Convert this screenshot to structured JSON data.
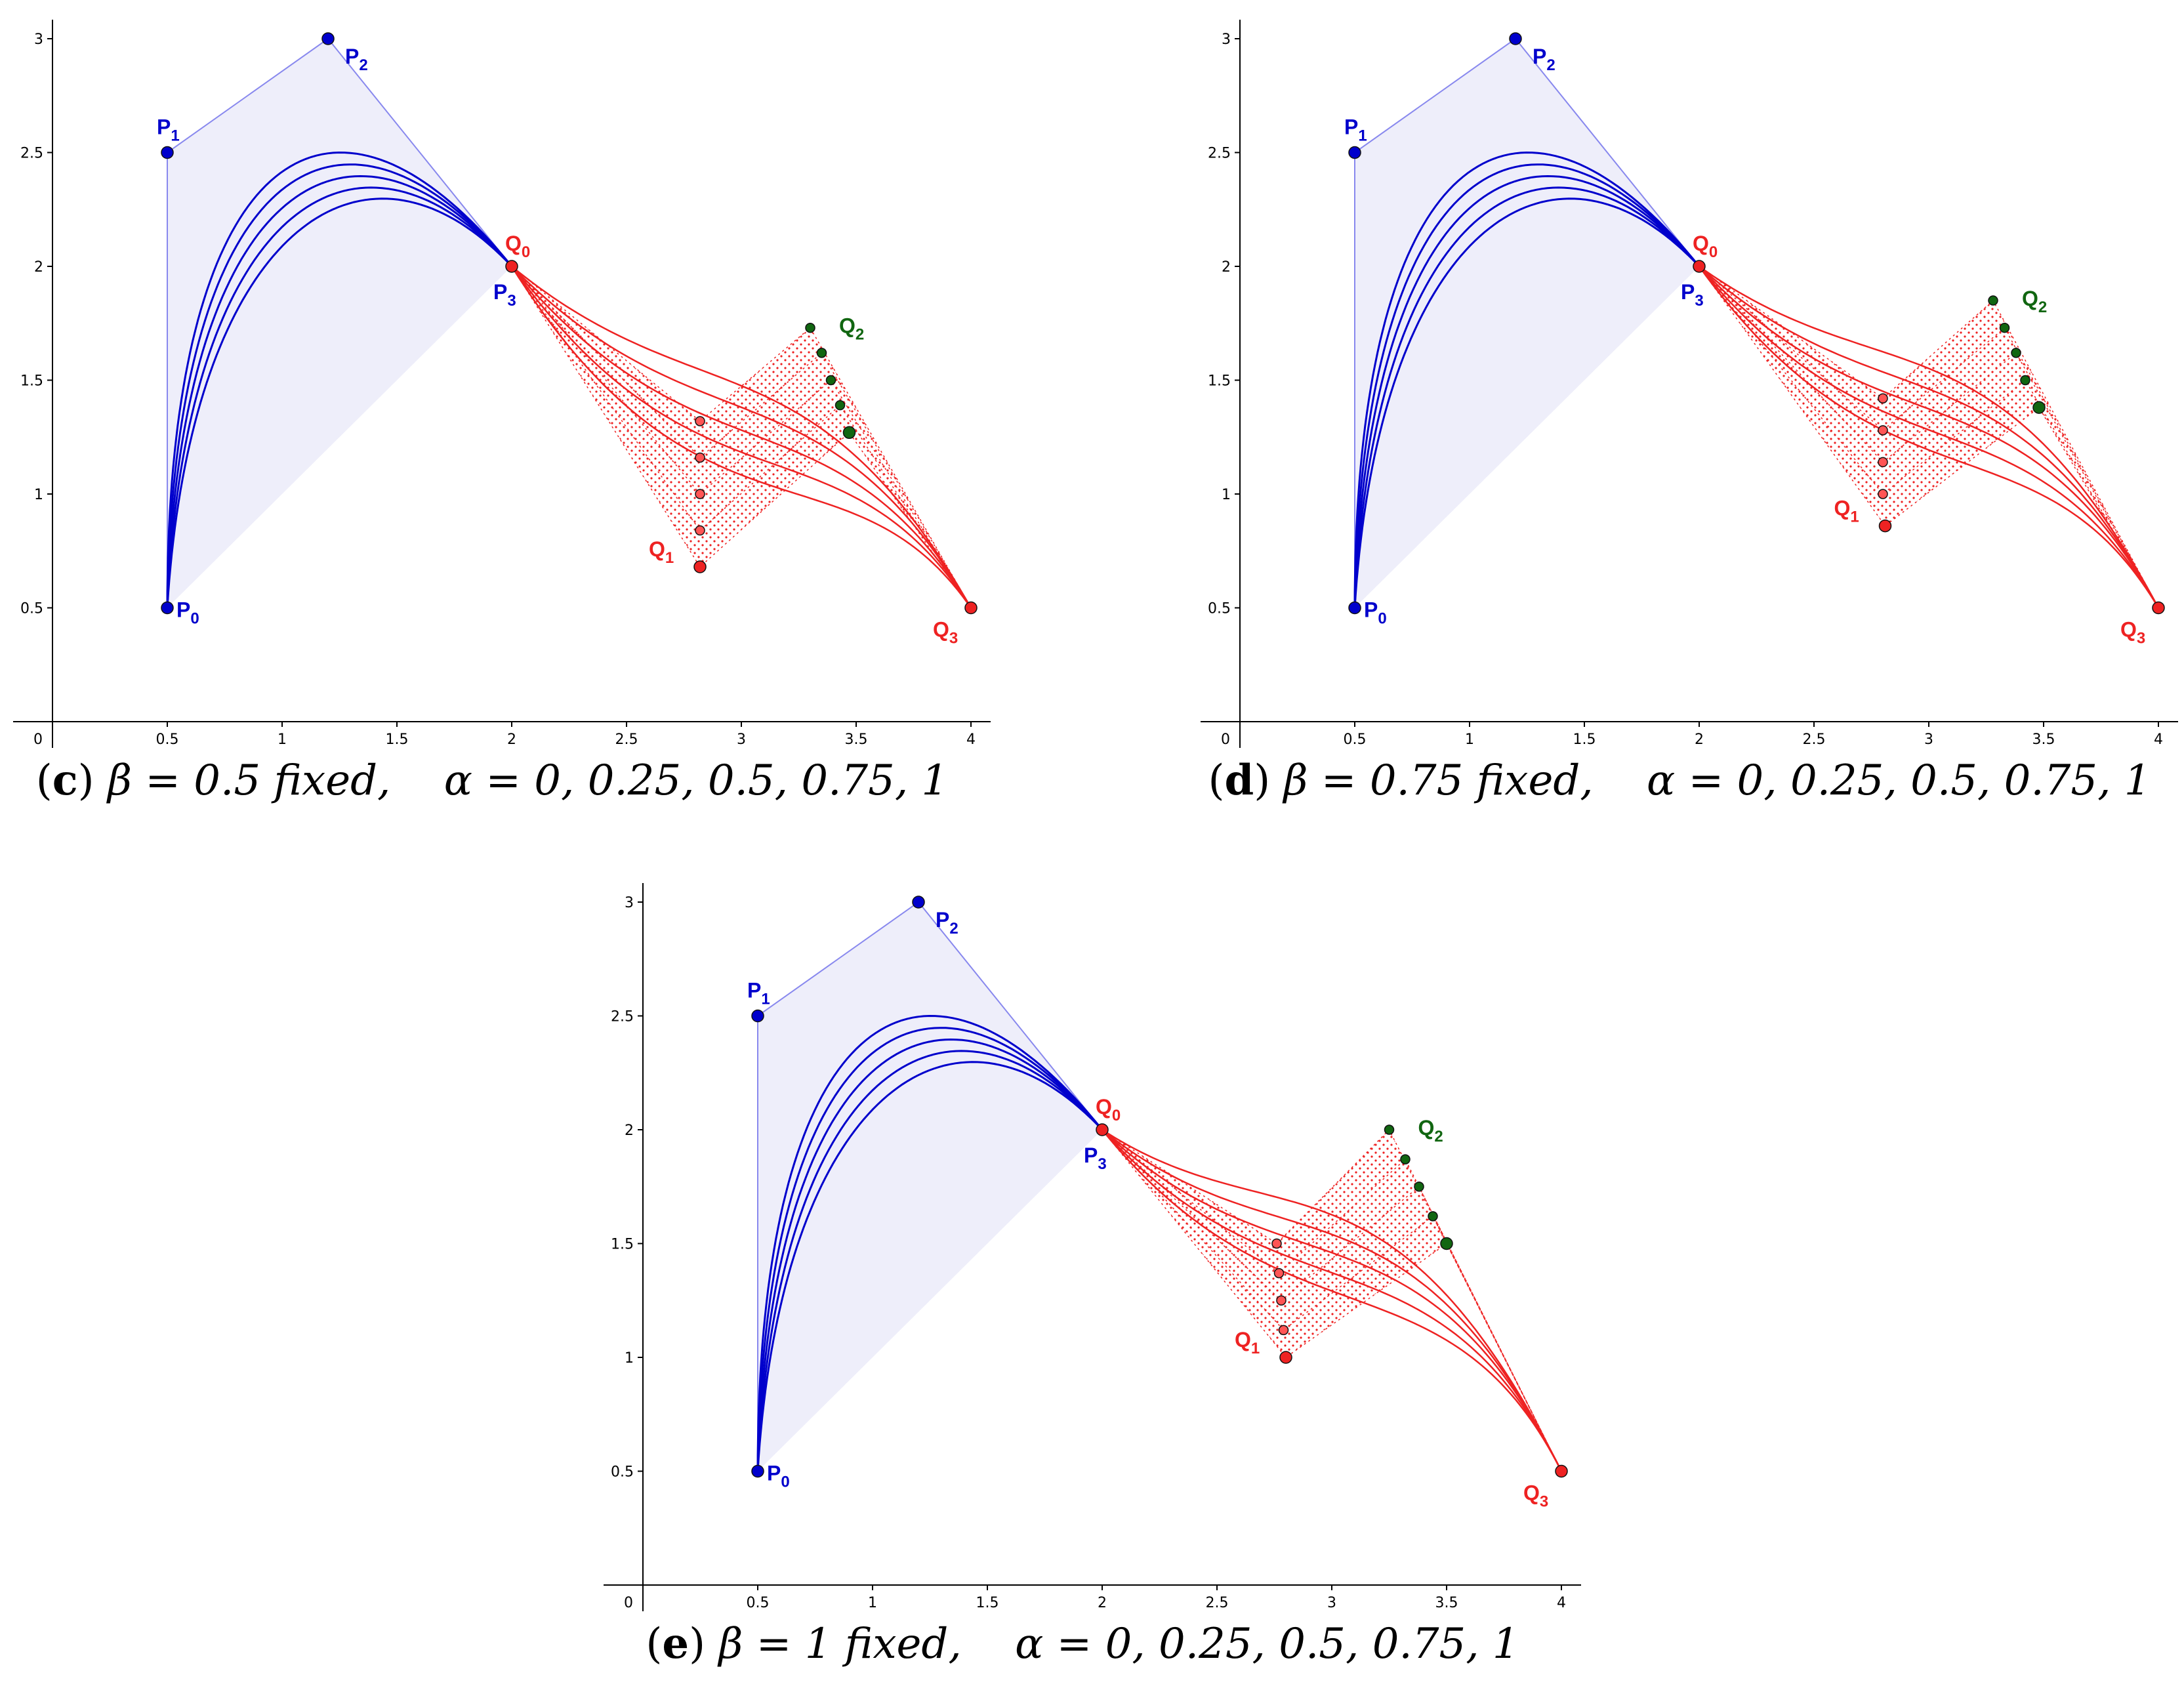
{
  "chart_data": [
    {
      "type": "line",
      "id": "c",
      "caption": {
        "tag": "c",
        "param": "β = 0.5 fixed,",
        "alphas": "α = 0, 0.25, 0.5, 0.75, 1"
      },
      "xlim": [
        0,
        4.1
      ],
      "ylim": [
        0,
        3.05
      ],
      "x_ticks": [
        0,
        0.5,
        1,
        1.5,
        2,
        2.5,
        3,
        3.5,
        4
      ],
      "y_ticks": [
        0.5,
        1,
        1.5,
        2,
        2.5,
        3
      ],
      "x_tick_labels": [
        "0",
        "0.5",
        "1",
        "1.5",
        "2",
        "2.5",
        "3",
        "3.5",
        "4"
      ],
      "y_tick_labels": [
        "0.5",
        "1",
        "1.5",
        "2",
        "2.5",
        "3"
      ],
      "blue_points": [
        [
          0.5,
          0.5
        ],
        [
          0.5,
          2.5
        ],
        [
          1.2,
          3.0
        ],
        [
          2.0,
          2.0
        ]
      ],
      "blue_labels": [
        {
          "main": "P",
          "sub": "0"
        },
        {
          "main": "P",
          "sub": "1"
        },
        {
          "main": "P",
          "sub": "2"
        },
        {
          "main": "P",
          "sub": "3"
        }
      ],
      "blue_curve_offsets": [
        0,
        0.25,
        0.5,
        0.75,
        1
      ],
      "q0": [
        2.0,
        2.0
      ],
      "q3": [
        4.0,
        0.5
      ],
      "q1_points": [
        [
          2.82,
          1.32
        ],
        [
          2.82,
          1.16
        ],
        [
          2.82,
          1.0
        ],
        [
          2.82,
          0.84
        ],
        [
          2.82,
          0.68
        ]
      ],
      "q2_points": [
        [
          3.3,
          1.73
        ],
        [
          3.35,
          1.62
        ],
        [
          3.39,
          1.5
        ],
        [
          3.43,
          1.39
        ],
        [
          3.47,
          1.27
        ]
      ],
      "red_labels": [
        {
          "main": "Q",
          "sub": "0"
        },
        {
          "main": "Q",
          "sub": "1"
        },
        {
          "main": "Q",
          "sub": "2"
        },
        {
          "main": "Q",
          "sub": "3"
        }
      ],
      "colors": {
        "blue": "#0000cc",
        "blue_fill": "#eeeefa",
        "blue_edge": "#8888ee",
        "red": "#ee2222",
        "green": "#116611"
      }
    },
    {
      "type": "line",
      "id": "d",
      "caption": {
        "tag": "d",
        "param": "β = 0.75 fixed,",
        "alphas": "α = 0, 0.25, 0.5, 0.75, 1"
      },
      "xlim": [
        0,
        4.1
      ],
      "ylim": [
        0,
        3.05
      ],
      "x_ticks": [
        0,
        0.5,
        1,
        1.5,
        2,
        2.5,
        3,
        3.5,
        4
      ],
      "y_ticks": [
        0.5,
        1,
        1.5,
        2,
        2.5,
        3
      ],
      "x_tick_labels": [
        "0",
        "0.5",
        "1",
        "1.5",
        "2",
        "2.5",
        "3",
        "3.5",
        "4"
      ],
      "y_tick_labels": [
        "0.5",
        "1",
        "1.5",
        "2",
        "2.5",
        "3"
      ],
      "blue_points": [
        [
          0.5,
          0.5
        ],
        [
          0.5,
          2.5
        ],
        [
          1.2,
          3.0
        ],
        [
          2.0,
          2.0
        ]
      ],
      "blue_labels": [
        {
          "main": "P",
          "sub": "0"
        },
        {
          "main": "P",
          "sub": "1"
        },
        {
          "main": "P",
          "sub": "2"
        },
        {
          "main": "P",
          "sub": "3"
        }
      ],
      "blue_curve_offsets": [
        0,
        0.25,
        0.5,
        0.75,
        1
      ],
      "q0": [
        2.0,
        2.0
      ],
      "q3": [
        4.0,
        0.5
      ],
      "q1_points": [
        [
          2.8,
          1.42
        ],
        [
          2.8,
          1.28
        ],
        [
          2.8,
          1.14
        ],
        [
          2.8,
          1.0
        ],
        [
          2.81,
          0.86
        ]
      ],
      "q2_points": [
        [
          3.28,
          1.85
        ],
        [
          3.33,
          1.73
        ],
        [
          3.38,
          1.62
        ],
        [
          3.42,
          1.5
        ],
        [
          3.48,
          1.38
        ]
      ],
      "red_labels": [
        {
          "main": "Q",
          "sub": "0"
        },
        {
          "main": "Q",
          "sub": "1"
        },
        {
          "main": "Q",
          "sub": "2"
        },
        {
          "main": "Q",
          "sub": "3"
        }
      ],
      "colors": {
        "blue": "#0000cc",
        "blue_fill": "#eeeefa",
        "blue_edge": "#8888ee",
        "red": "#ee2222",
        "green": "#116611"
      }
    },
    {
      "type": "line",
      "id": "e",
      "caption": {
        "tag": "e",
        "param": "β = 1 fixed,",
        "alphas": "α = 0, 0.25, 0.5, 0.75, 1"
      },
      "xlim": [
        0,
        4.1
      ],
      "ylim": [
        0,
        3.05
      ],
      "x_ticks": [
        0,
        0.5,
        1,
        1.5,
        2,
        2.5,
        3,
        3.5,
        4
      ],
      "y_ticks": [
        0.5,
        1,
        1.5,
        2,
        2.5,
        3
      ],
      "x_tick_labels": [
        "0",
        "0.5",
        "1",
        "1.5",
        "2",
        "2.5",
        "3",
        "3.5",
        "4"
      ],
      "y_tick_labels": [
        "0.5",
        "1",
        "1.5",
        "2",
        "2.5",
        "3"
      ],
      "blue_points": [
        [
          0.5,
          0.5
        ],
        [
          0.5,
          2.5
        ],
        [
          1.2,
          3.0
        ],
        [
          2.0,
          2.0
        ]
      ],
      "blue_labels": [
        {
          "main": "P",
          "sub": "0"
        },
        {
          "main": "P",
          "sub": "1"
        },
        {
          "main": "P",
          "sub": "2"
        },
        {
          "main": "P",
          "sub": "3"
        }
      ],
      "blue_curve_offsets": [
        0,
        0.25,
        0.5,
        0.75,
        1
      ],
      "q0": [
        2.0,
        2.0
      ],
      "q3": [
        4.0,
        0.5
      ],
      "q1_points": [
        [
          2.76,
          1.5
        ],
        [
          2.77,
          1.37
        ],
        [
          2.78,
          1.25
        ],
        [
          2.79,
          1.12
        ],
        [
          2.8,
          1.0
        ]
      ],
      "q2_points": [
        [
          3.25,
          2.0
        ],
        [
          3.32,
          1.87
        ],
        [
          3.38,
          1.75
        ],
        [
          3.44,
          1.62
        ],
        [
          3.5,
          1.5
        ]
      ],
      "red_labels": [
        {
          "main": "Q",
          "sub": "0"
        },
        {
          "main": "Q",
          "sub": "1"
        },
        {
          "main": "Q",
          "sub": "2"
        },
        {
          "main": "Q",
          "sub": "3"
        }
      ],
      "colors": {
        "blue": "#0000cc",
        "blue_fill": "#eeeefa",
        "blue_edge": "#8888ee",
        "red": "#ee2222",
        "green": "#116611"
      }
    }
  ]
}
